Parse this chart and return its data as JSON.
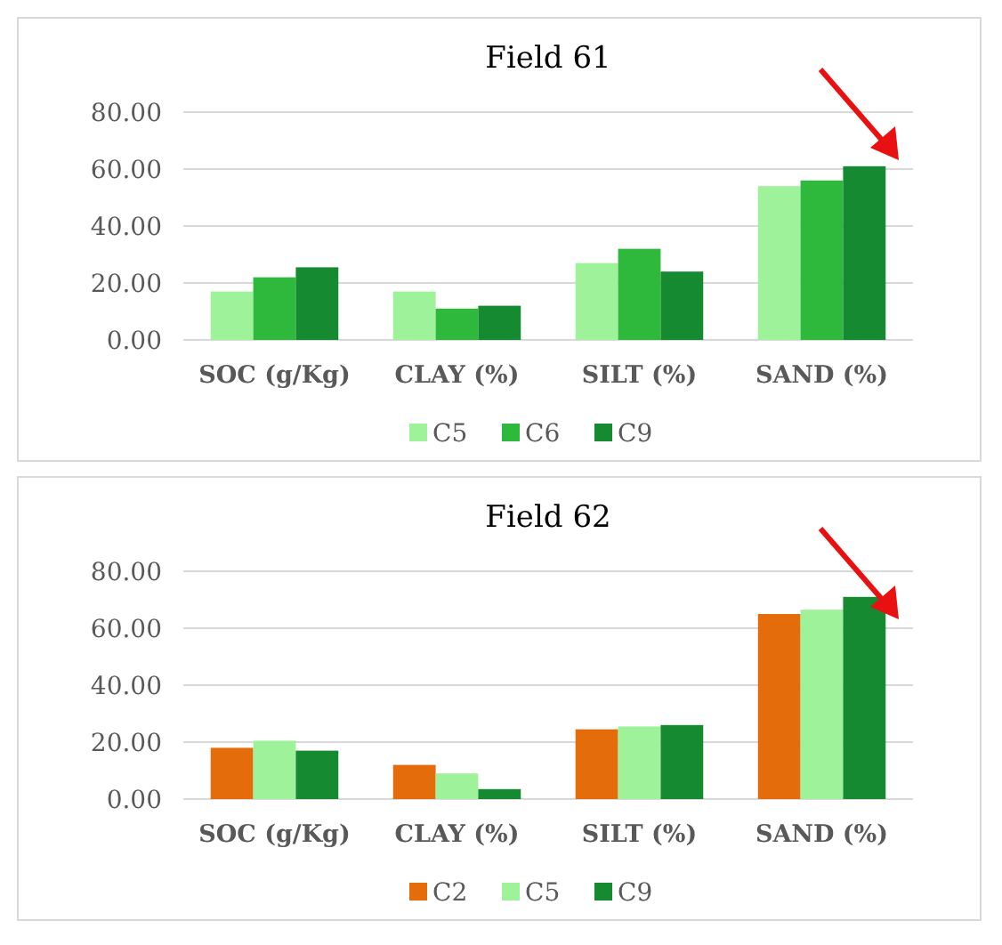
{
  "chart_data": [
    {
      "type": "bar",
      "title": "Field 61",
      "categories": [
        "SOC (g/Kg)",
        "CLAY (%)",
        "SILT (%)",
        "SAND (%)"
      ],
      "series": [
        {
          "name": "C5",
          "color": "#9ef29a",
          "values": [
            17,
            17,
            27,
            54
          ]
        },
        {
          "name": "C6",
          "color": "#2eb83c",
          "values": [
            22,
            11,
            32,
            56
          ]
        },
        {
          "name": "C9",
          "color": "#168a30",
          "values": [
            25.5,
            12,
            24,
            61
          ]
        }
      ],
      "ylim": [
        0,
        80
      ],
      "yticks": [
        {
          "value": 0,
          "label": "0.00"
        },
        {
          "value": 20,
          "label": "20.00"
        },
        {
          "value": 40,
          "label": "40.00"
        },
        {
          "value": 60,
          "label": "60.00"
        },
        {
          "value": 80,
          "label": "80.00"
        }
      ],
      "grid": "y",
      "legend": "bottom"
    },
    {
      "type": "bar",
      "title": "Field 62",
      "categories": [
        "SOC (g/Kg)",
        "CLAY (%)",
        "SILT (%)",
        "SAND (%)"
      ],
      "series": [
        {
          "name": "C2",
          "color": "#e46c0a",
          "values": [
            18,
            12,
            24.5,
            65
          ]
        },
        {
          "name": "C5",
          "color": "#9ef29a",
          "values": [
            20.5,
            9,
            25.5,
            66.5
          ]
        },
        {
          "name": "C9",
          "color": "#168a30",
          "values": [
            17,
            3.5,
            26,
            71
          ]
        }
      ],
      "ylim": [
        0,
        80
      ],
      "yticks": [
        {
          "value": 0,
          "label": "0.00"
        },
        {
          "value": 20,
          "label": "20.00"
        },
        {
          "value": 40,
          "label": "40.00"
        },
        {
          "value": 60,
          "label": "60.00"
        },
        {
          "value": 80,
          "label": "80.00"
        }
      ],
      "grid": "y",
      "legend": "bottom"
    }
  ]
}
